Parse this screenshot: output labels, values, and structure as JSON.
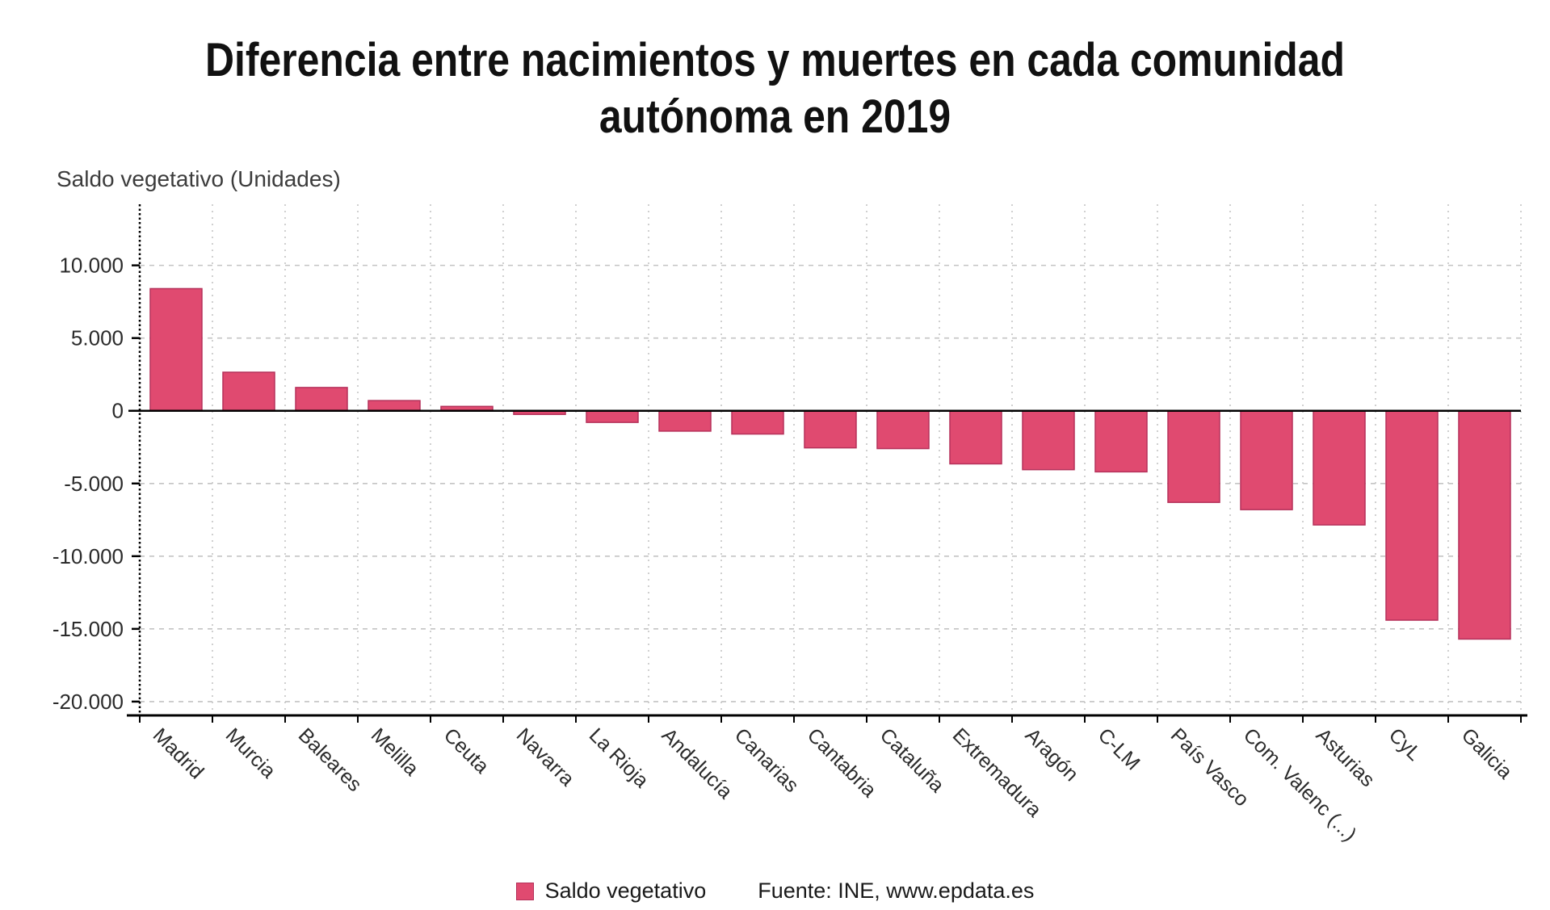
{
  "header": {
    "line1": "Diferencia entre nacimientos y muertes en cada comunidad",
    "line2": "autónoma en 2019"
  },
  "axis_unit_label": "Saldo vegetativo (Unidades)",
  "legend": {
    "label": "Saldo vegetativo",
    "source": "Fuente: INE, www.epdata.es",
    "swatch_color": "#e04a70"
  },
  "colors": {
    "bar_fill": "#e04a70",
    "bar_stroke": "#b5315a",
    "grid": "#c4c4c4",
    "axis": "#000000",
    "tick_text": "#2b2b2b"
  },
  "chart_data": {
    "type": "bar",
    "title": "Diferencia entre nacimientos y muertes en cada comunidad autónoma en 2019",
    "ylabel": "Saldo vegetativo (Unidades)",
    "xlabel": "",
    "legend_position": "bottom",
    "grid": true,
    "series_name": "Saldo vegetativo",
    "categories": [
      "Madrid",
      "Murcia",
      "Baleares",
      "Melilla",
      "Ceuta",
      "Navarra",
      "La Rioja",
      "Andalucía",
      "Canarias",
      "Cantabria",
      "Cataluña",
      "Extremadura",
      "Aragón",
      "C-LM",
      "País Vasco",
      "Com. Valenc (...)",
      "Asturias",
      "CyL",
      "Galicia"
    ],
    "values": [
      8400,
      2650,
      1600,
      700,
      300,
      -250,
      -800,
      -1400,
      -1600,
      -2550,
      -2600,
      -3650,
      -4050,
      -4200,
      -6300,
      -6800,
      -7850,
      -14400,
      -15700
    ],
    "ylim": [
      -20950,
      14200
    ],
    "yticks": [
      {
        "value": 10000,
        "label": "10.000"
      },
      {
        "value": 5000,
        "label": "5.000"
      },
      {
        "value": 0,
        "label": "0"
      },
      {
        "value": -5000,
        "label": "-5.000"
      },
      {
        "value": -10000,
        "label": "-10.000"
      },
      {
        "value": -15000,
        "label": "-15.000"
      },
      {
        "value": -20000,
        "label": "-20.000"
      }
    ]
  }
}
